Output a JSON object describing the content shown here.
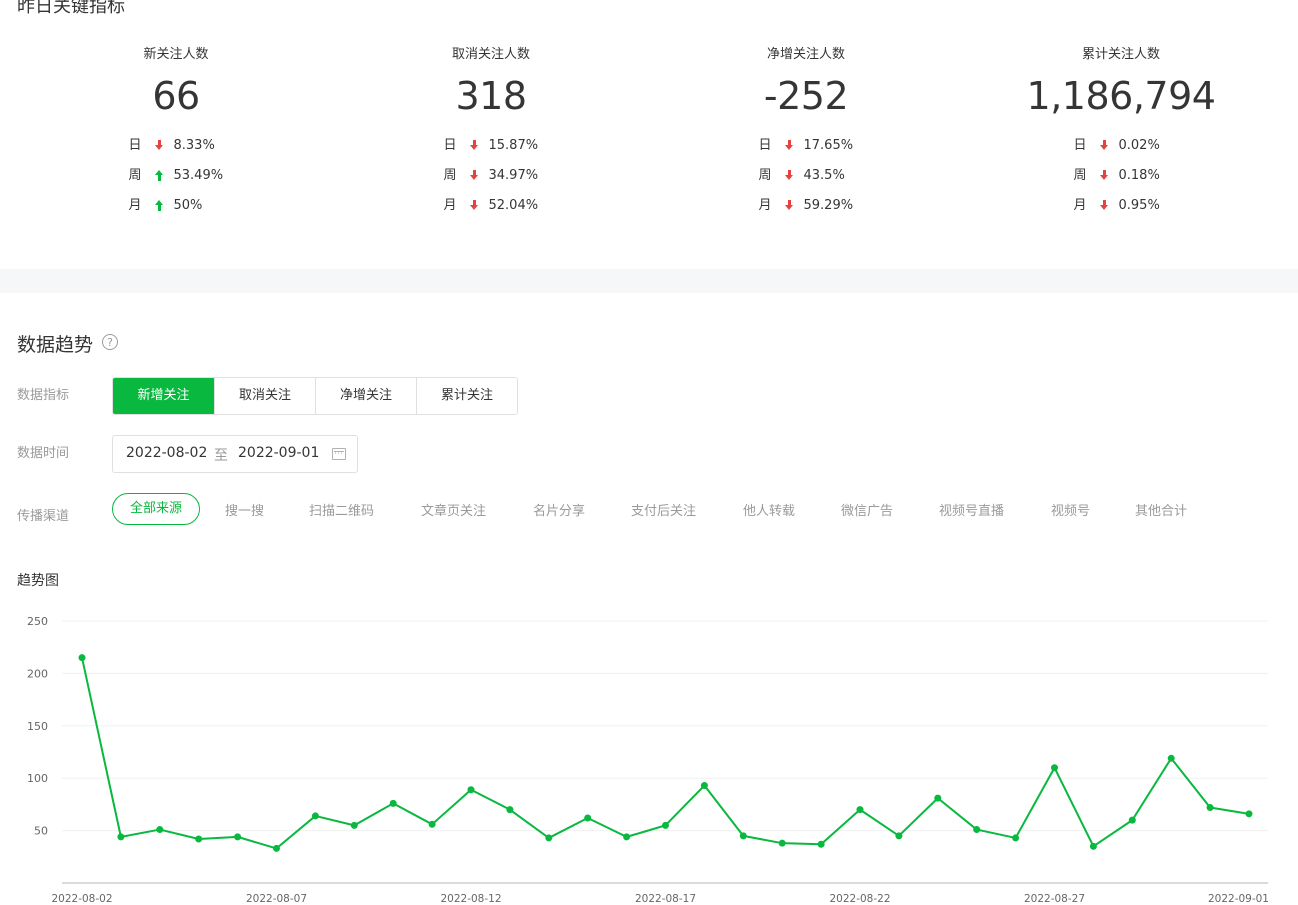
{
  "key_metrics": {
    "title": "昨日关键指标",
    "items": [
      {
        "label": "新关注人数",
        "value": "66",
        "comparisons": [
          {
            "period": "日",
            "direction": "down",
            "value": "8.33%"
          },
          {
            "period": "周",
            "direction": "up",
            "value": "53.49%"
          },
          {
            "period": "月",
            "direction": "up",
            "value": "50%"
          }
        ]
      },
      {
        "label": "取消关注人数",
        "value": "318",
        "comparisons": [
          {
            "period": "日",
            "direction": "down",
            "value": "15.87%"
          },
          {
            "period": "周",
            "direction": "down",
            "value": "34.97%"
          },
          {
            "period": "月",
            "direction": "down",
            "value": "52.04%"
          }
        ]
      },
      {
        "label": "净增关注人数",
        "value": "-252",
        "comparisons": [
          {
            "period": "日",
            "direction": "down",
            "value": "17.65%"
          },
          {
            "period": "周",
            "direction": "down",
            "value": "43.5%"
          },
          {
            "period": "月",
            "direction": "down",
            "value": "59.29%"
          }
        ]
      },
      {
        "label": "累计关注人数",
        "value": "1,186,794",
        "comparisons": [
          {
            "period": "日",
            "direction": "down",
            "value": "0.02%"
          },
          {
            "period": "周",
            "direction": "down",
            "value": "0.18%"
          },
          {
            "period": "月",
            "direction": "down",
            "value": "0.95%"
          }
        ]
      }
    ]
  },
  "trend": {
    "title": "数据趋势",
    "help_icon": "?",
    "metric_label": "数据指标",
    "metric_tabs": [
      "新增关注",
      "取消关注",
      "净增关注",
      "累计关注"
    ],
    "active_tab": 0,
    "time_label": "数据时间",
    "date_from": "2022-08-02",
    "date_separator": "至",
    "date_to": "2022-09-01",
    "channel_label": "传播渠道",
    "channels": [
      "全部来源",
      "搜一搜",
      "扫描二维码",
      "文章页关注",
      "名片分享",
      "支付后关注",
      "他人转载",
      "微信广告",
      "视频号直播",
      "视频号",
      "其他合计"
    ],
    "active_channel": 0,
    "chart_title": "趋势图"
  },
  "colors": {
    "accent": "#09b83e",
    "down": "#e64340",
    "up": "#09b83e",
    "muted": "#9a9a9a"
  },
  "chart_data": {
    "type": "line",
    "title": "",
    "xlabel": "",
    "ylabel": "",
    "ylim": [
      0,
      250
    ],
    "yticks": [
      50,
      100,
      150,
      200,
      250
    ],
    "xtick_labels": [
      "2022-08-02",
      "2022-08-07",
      "2022-08-12",
      "2022-08-17",
      "2022-08-22",
      "2022-08-27",
      "2022-09-01"
    ],
    "x": [
      "2022-08-02",
      "2022-08-03",
      "2022-08-04",
      "2022-08-05",
      "2022-08-06",
      "2022-08-07",
      "2022-08-08",
      "2022-08-09",
      "2022-08-10",
      "2022-08-11",
      "2022-08-12",
      "2022-08-13",
      "2022-08-14",
      "2022-08-15",
      "2022-08-16",
      "2022-08-17",
      "2022-08-18",
      "2022-08-19",
      "2022-08-20",
      "2022-08-21",
      "2022-08-22",
      "2022-08-23",
      "2022-08-24",
      "2022-08-25",
      "2022-08-26",
      "2022-08-27",
      "2022-08-28",
      "2022-08-29",
      "2022-08-30",
      "2022-08-31",
      "2022-09-01"
    ],
    "values": [
      215,
      44,
      51,
      42,
      44,
      33,
      64,
      55,
      76,
      56,
      89,
      70,
      43,
      62,
      44,
      55,
      93,
      45,
      38,
      37,
      70,
      45,
      81,
      51,
      43,
      110,
      35,
      60,
      119,
      72,
      66
    ],
    "grid": true,
    "legend": "none"
  }
}
